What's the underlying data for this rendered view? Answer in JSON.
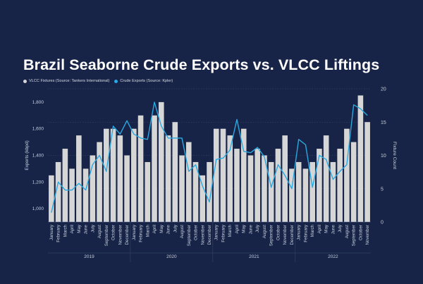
{
  "chart_data": {
    "type": "bar+line",
    "title": "Brazil Seaborne Crude Exports vs. VLCC Liftings",
    "legend": {
      "placement": "top-left",
      "entries": [
        {
          "label": "VLCC Fixtures (Source: Tankers International)",
          "color": "#d6d6d6"
        },
        {
          "label": "Crude Exports (Source: Kpler)",
          "color": "#29a9e0"
        }
      ]
    },
    "ylabel_left": "Exports (kbpd)",
    "ylabel_right": "Fixture Count",
    "ylim_left": [
      900,
      1900
    ],
    "ylim_right": [
      0,
      20
    ],
    "left_ticks": [
      "1,000",
      "1,200",
      "1,400",
      "1,600",
      "1,800"
    ],
    "left_tick_values": [
      1000,
      1200,
      1400,
      1600,
      1800
    ],
    "right_ticks": [
      "0",
      "5",
      "10",
      "15",
      "20"
    ],
    "right_tick_values": [
      0,
      5,
      10,
      15,
      20
    ],
    "grid": true,
    "categories": [
      "January",
      "February",
      "March",
      "April",
      "May",
      "June",
      "July",
      "August",
      "September",
      "October",
      "November",
      "December",
      "January",
      "February",
      "March",
      "April",
      "May",
      "June",
      "July",
      "August",
      "September",
      "October",
      "November",
      "December",
      "January",
      "February",
      "March",
      "April",
      "May",
      "June",
      "July",
      "August",
      "September",
      "October",
      "November",
      "December",
      "January",
      "February",
      "March",
      "April",
      "May",
      "June",
      "July",
      "August",
      "September",
      "October",
      "November"
    ],
    "years": [
      {
        "label": "2019",
        "start": 0,
        "end": 11
      },
      {
        "label": "2020",
        "start": 12,
        "end": 23
      },
      {
        "label": "2021",
        "start": 24,
        "end": 35
      },
      {
        "label": "2022",
        "start": 36,
        "end": 46
      }
    ],
    "series": [
      {
        "name": "VLCC Fixtures (Source: Tankers International)",
        "kind": "bar",
        "axis": "right",
        "values": [
          7,
          9,
          11,
          8,
          13,
          8,
          10,
          12,
          14,
          14,
          13,
          10,
          14,
          16,
          9,
          16,
          18,
          13,
          15,
          10,
          12,
          9,
          7,
          9,
          14,
          14,
          13,
          11,
          14,
          10,
          11,
          10,
          9,
          11,
          13,
          8,
          9,
          8,
          9,
          11,
          13,
          9,
          11,
          14,
          12,
          19,
          15
        ]
      },
      {
        "name": "Crude Exports (Source: Kpler)",
        "kind": "line",
        "axis": "left",
        "values": [
          970,
          1200,
          1140,
          1140,
          1190,
          1140,
          1330,
          1400,
          1280,
          1620,
          1560,
          1660,
          1560,
          1530,
          1520,
          1800,
          1620,
          1530,
          1530,
          1530,
          1280,
          1330,
          1170,
          1050,
          1370,
          1380,
          1440,
          1670,
          1430,
          1420,
          1460,
          1390,
          1160,
          1330,
          1250,
          1150,
          1520,
          1480,
          1160,
          1400,
          1370,
          1220,
          1280,
          1330,
          1780,
          1750,
          1700
        ]
      }
    ]
  }
}
